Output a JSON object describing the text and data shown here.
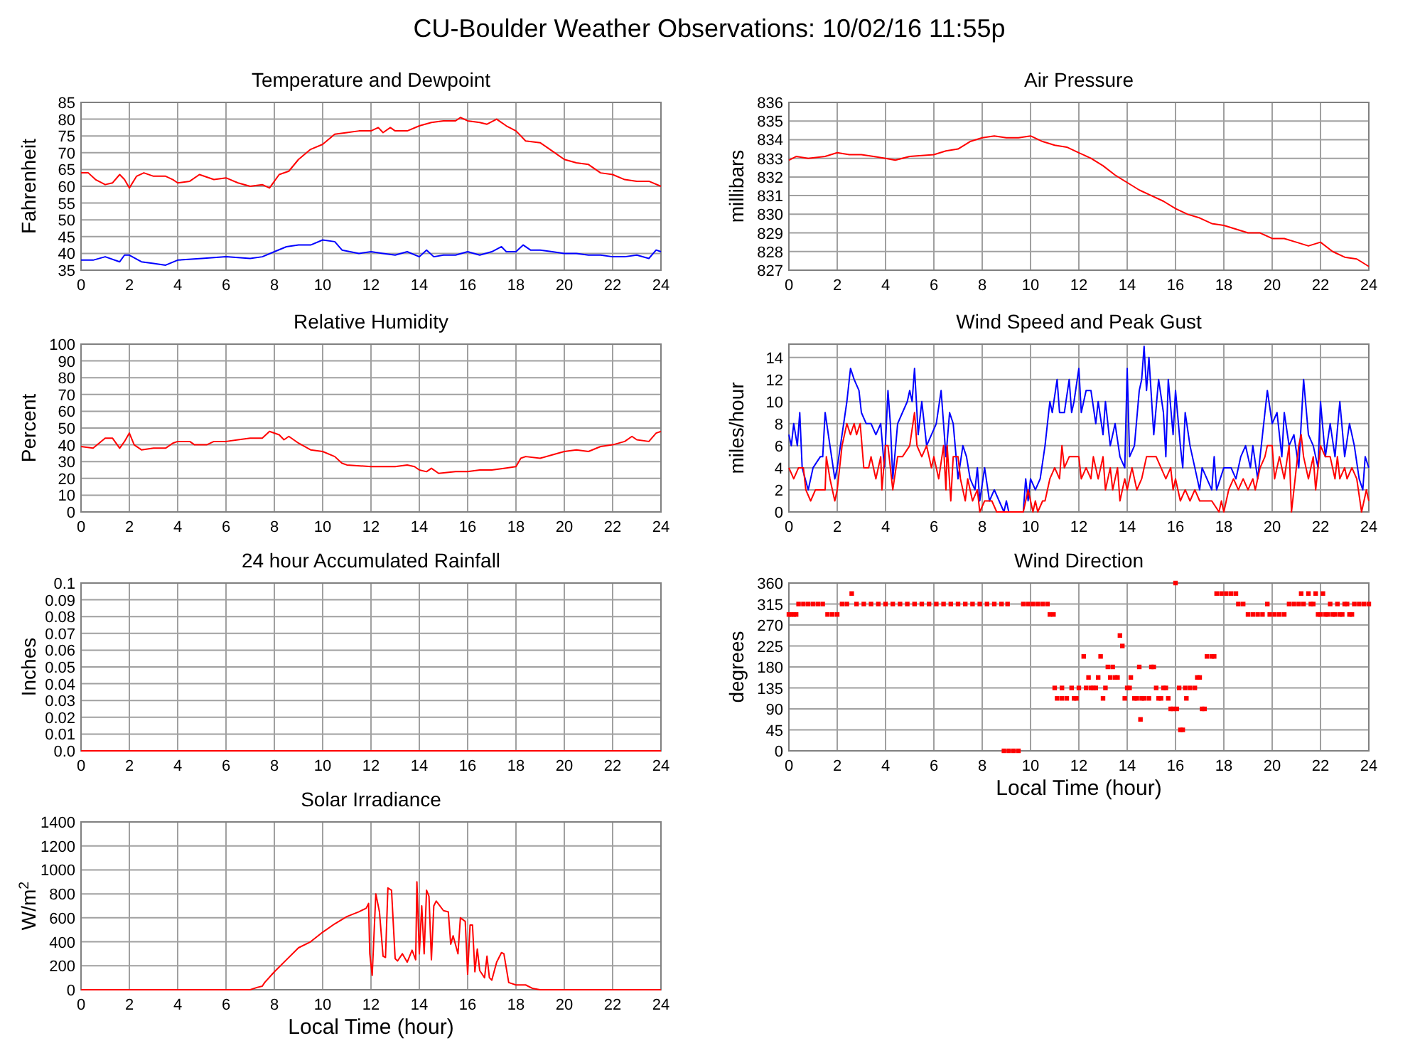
{
  "chart_data": [
    {
      "type": "line",
      "title": "Temperature and Dewpoint",
      "ylabel": "Fahrenheit",
      "annotations": [
        "CU-Boulder Weather Observations: 10/02/16 11:55p"
      ],
      "xlim": [
        0,
        24
      ],
      "xticks": [
        0,
        2,
        4,
        6,
        8,
        10,
        12,
        14,
        16,
        18,
        20,
        22,
        24
      ],
      "ylim": [
        35,
        85
      ],
      "yticks": [
        35,
        40,
        45,
        50,
        55,
        60,
        65,
        70,
        75,
        80,
        85
      ],
      "grid": true,
      "series": [
        {
          "color": "#ff0000",
          "x": [
            0,
            0.3,
            0.6,
            1,
            1.3,
            1.6,
            1.8,
            2,
            2.3,
            2.6,
            3,
            3.5,
            3.8,
            4,
            4.5,
            4.9,
            5.5,
            6,
            6.5,
            7,
            7.5,
            7.8,
            8.2,
            8.6,
            9,
            9.5,
            10,
            10.5,
            11,
            11.5,
            12,
            12.3,
            12.5,
            12.8,
            13,
            13.5,
            14,
            14.5,
            15,
            15.5,
            15.7,
            16,
            16.5,
            16.8,
            17.2,
            17.6,
            18,
            18.4,
            19,
            19.5,
            20,
            20.5,
            21,
            21.5,
            22,
            22.5,
            23,
            23.5,
            24
          ],
          "values": [
            64,
            64,
            62,
            60.5,
            61,
            63.5,
            62,
            59.5,
            63,
            64,
            63,
            63,
            62,
            61,
            61.5,
            63.5,
            62,
            62.5,
            61,
            60,
            60.5,
            59.5,
            63.5,
            64.5,
            68,
            71,
            72.5,
            75.5,
            76,
            76.5,
            76.5,
            77.5,
            76,
            77.5,
            76.5,
            76.5,
            78,
            79,
            79.5,
            79.5,
            80.5,
            79.5,
            79,
            78.5,
            80,
            78,
            76.5,
            73.5,
            73,
            70.5,
            68,
            67,
            66.5,
            64,
            63.5,
            62,
            61.5,
            61.5,
            60
          ]
        },
        {
          "color": "#0000ff",
          "x": [
            0,
            0.5,
            1,
            1.6,
            1.8,
            2,
            2.5,
            3,
            3.5,
            4,
            5,
            6,
            7,
            7.5,
            8,
            8.5,
            9,
            9.5,
            10,
            10.5,
            10.8,
            11.5,
            12,
            12.5,
            13,
            13.5,
            14,
            14.3,
            14.6,
            15,
            15.5,
            16,
            16.5,
            17,
            17.4,
            17.6,
            18,
            18.3,
            18.6,
            19,
            19.5,
            20,
            20.5,
            21,
            21.5,
            22,
            22.5,
            23,
            23.5,
            23.8,
            24
          ],
          "values": [
            38,
            38,
            39,
            37.5,
            39.5,
            39.5,
            37.5,
            37,
            36.5,
            38,
            38.5,
            39,
            38.5,
            39,
            40.5,
            42,
            42.5,
            42.5,
            44,
            43.5,
            41,
            40,
            40.5,
            40,
            39.5,
            40.5,
            39,
            41,
            39,
            39.5,
            39.5,
            40.5,
            39.5,
            40.5,
            42,
            40.5,
            40.5,
            42.5,
            41,
            41,
            40.5,
            40,
            40,
            39.5,
            39.5,
            39,
            39,
            39.5,
            38.5,
            41,
            40.5
          ]
        }
      ]
    },
    {
      "type": "line",
      "title": "Air Pressure",
      "ylabel": "millibars",
      "xlim": [
        0,
        24
      ],
      "xticks": [
        0,
        2,
        4,
        6,
        8,
        10,
        12,
        14,
        16,
        18,
        20,
        22,
        24
      ],
      "ylim": [
        827,
        836
      ],
      "yticks": [
        827,
        828,
        829,
        830,
        831,
        832,
        833,
        834,
        835,
        836
      ],
      "grid": true,
      "series": [
        {
          "color": "#ff0000",
          "x": [
            0,
            0.3,
            0.8,
            1.5,
            2,
            2.5,
            3,
            3.5,
            4,
            4.4,
            5,
            6,
            6.5,
            7,
            7.5,
            8,
            8.5,
            9,
            9.5,
            10,
            10.5,
            11,
            11.5,
            12,
            12.5,
            13,
            13.5,
            14,
            14.5,
            15,
            15.5,
            16,
            16.5,
            17,
            17.5,
            18,
            18.5,
            19,
            19.5,
            20,
            20.5,
            21,
            21.5,
            22,
            22.5,
            23,
            23.5,
            24
          ],
          "values": [
            832.9,
            833.1,
            833,
            833.1,
            833.3,
            833.2,
            833.2,
            833.1,
            833,
            832.9,
            833.1,
            833.2,
            833.4,
            833.5,
            833.9,
            834.1,
            834.2,
            834.1,
            834.1,
            834.2,
            833.9,
            833.7,
            833.6,
            833.3,
            833,
            832.6,
            832.1,
            831.7,
            831.3,
            831,
            830.7,
            830.3,
            830,
            829.8,
            829.5,
            829.4,
            829.2,
            829,
            829,
            828.7,
            828.7,
            828.5,
            828.3,
            828.5,
            828,
            827.7,
            827.6,
            827.2
          ]
        }
      ]
    },
    {
      "type": "line",
      "title": "Relative Humidity",
      "ylabel": "Percent",
      "xlim": [
        0,
        24
      ],
      "xticks": [
        0,
        2,
        4,
        6,
        8,
        10,
        12,
        14,
        16,
        18,
        20,
        22,
        24
      ],
      "ylim": [
        0,
        100
      ],
      "yticks": [
        0,
        10,
        20,
        30,
        40,
        50,
        60,
        70,
        80,
        90,
        100
      ],
      "grid": true,
      "series": [
        {
          "color": "#ff0000",
          "x": [
            0,
            0.5,
            1,
            1.3,
            1.6,
            1.8,
            2,
            2.2,
            2.5,
            3,
            3.5,
            3.8,
            4,
            4.5,
            4.7,
            5.2,
            5.5,
            6,
            6.5,
            7,
            7.5,
            7.8,
            8.2,
            8.4,
            8.6,
            9,
            9.5,
            10,
            10.5,
            10.8,
            11,
            12,
            13,
            13.5,
            13.8,
            14,
            14.3,
            14.5,
            14.8,
            15.5,
            16,
            16.5,
            17,
            17.5,
            18,
            18.2,
            18.4,
            19,
            19.5,
            20,
            20.5,
            21,
            21.5,
            22,
            22.5,
            22.8,
            23,
            23.5,
            23.8,
            24
          ],
          "values": [
            39,
            38,
            44,
            44,
            38,
            42,
            47,
            40,
            37,
            38,
            38,
            41,
            42,
            42,
            40,
            40,
            42,
            42,
            43,
            44,
            44,
            48,
            46,
            43,
            45,
            41,
            37,
            36,
            33,
            29,
            28,
            27,
            27,
            28,
            27,
            25,
            24,
            26,
            23,
            24,
            24,
            25,
            25,
            26,
            27,
            32,
            33,
            32,
            34,
            36,
            37,
            36,
            39,
            40,
            42,
            45,
            43,
            42,
            47,
            48
          ]
        }
      ]
    },
    {
      "type": "line",
      "title": "Wind Speed and Peak Gust",
      "ylabel": "miles/hour",
      "xlim": [
        0,
        24
      ],
      "xticks": [
        0,
        2,
        4,
        6,
        8,
        10,
        12,
        14,
        16,
        18,
        20,
        22,
        24
      ],
      "ylim": [
        0,
        15.2
      ],
      "yticks": [
        0,
        2,
        4,
        6,
        8,
        10,
        12,
        14
      ],
      "grid": true,
      "series": [
        {
          "color": "#0000ff",
          "x": [
            0,
            0.1,
            0.2,
            0.35,
            0.45,
            0.55,
            0.8,
            1,
            1.3,
            1.4,
            1.5,
            1.7,
            1.9,
            2,
            2.2,
            2.4,
            2.55,
            2.7,
            2.9,
            3,
            3.2,
            3.4,
            3.6,
            3.8,
            3.95,
            4.1,
            4.2,
            4.3,
            4.5,
            4.7,
            4.9,
            5,
            5.1,
            5.2,
            5.35,
            5.5,
            5.7,
            5.9,
            6.1,
            6.3,
            6.5,
            6.65,
            6.8,
            7,
            7.2,
            7.35,
            7.5,
            7.7,
            7.8,
            7.9,
            8.1,
            8.3,
            8.5,
            8.7,
            8.9,
            9,
            9.1,
            9.7,
            9.8,
            9.9,
            10,
            10.2,
            10.4,
            10.6,
            10.8,
            10.9,
            11.1,
            11.2,
            11.4,
            11.6,
            11.7,
            11.8,
            12,
            12.1,
            12.3,
            12.5,
            12.7,
            12.8,
            13,
            13.1,
            13.3,
            13.5,
            13.7,
            13.9,
            14,
            14.1,
            14.3,
            14.5,
            14.6,
            14.7,
            14.8,
            14.9,
            15.1,
            15.3,
            15.5,
            15.6,
            15.7,
            15.9,
            16,
            16.2,
            16.3,
            16.4,
            16.6,
            16.8,
            17,
            17.1,
            17.3,
            17.5,
            17.6,
            17.7,
            18,
            18.3,
            18.5,
            18.7,
            18.9,
            19.1,
            19.2,
            19.4,
            19.6,
            19.8,
            20,
            20.2,
            20.4,
            20.5,
            20.7,
            20.9,
            21.1,
            21.3,
            21.5,
            21.7,
            21.9,
            22,
            22.2,
            22.4,
            22.6,
            22.8,
            23,
            23.2,
            23.4,
            23.6,
            23.75,
            23.85,
            24
          ],
          "values": [
            7,
            6,
            8,
            6,
            9,
            4,
            2,
            4,
            5,
            5,
            9,
            6,
            3,
            4,
            7,
            10,
            13,
            12,
            11,
            9,
            8,
            8,
            7,
            8,
            4,
            11,
            8,
            3,
            8,
            9,
            10,
            11,
            10,
            13,
            7,
            10,
            6,
            7,
            8,
            11,
            5,
            9,
            8,
            3,
            6,
            5,
            3,
            2,
            4,
            1,
            4,
            1,
            2,
            1,
            0,
            1,
            0,
            0,
            3,
            1,
            3,
            2,
            3,
            6,
            10,
            9,
            12,
            9,
            9,
            12,
            9,
            10,
            13,
            9,
            11,
            11,
            8,
            10,
            7,
            10,
            6,
            8,
            5,
            4,
            13,
            5,
            6,
            11,
            12,
            15,
            11,
            14,
            7,
            12,
            9,
            5,
            12,
            7,
            11,
            6,
            4,
            9,
            6,
            4,
            2,
            4,
            3,
            2,
            5,
            2,
            4,
            4,
            3,
            5,
            6,
            4,
            6,
            3,
            7,
            11,
            8,
            9,
            5,
            9,
            6,
            7,
            4,
            12,
            7,
            6,
            4,
            10,
            5,
            8,
            5,
            10,
            5,
            8,
            6,
            3,
            2,
            5,
            4
          ]
        },
        {
          "color": "#ff0000",
          "x": [
            0,
            0.2,
            0.4,
            0.6,
            0.7,
            0.9,
            1.1,
            1.3,
            1.5,
            1.55,
            1.7,
            1.9,
            2,
            2.2,
            2.4,
            2.55,
            2.7,
            2.8,
            2.95,
            3.1,
            3.3,
            3.4,
            3.6,
            3.8,
            3.85,
            4,
            4.1,
            4.3,
            4.5,
            4.7,
            5,
            5.2,
            5.3,
            5.5,
            5.7,
            5.9,
            6,
            6.2,
            6.4,
            6.5,
            6.55,
            6.7,
            6.8,
            7,
            7.1,
            7.3,
            7.4,
            7.6,
            7.8,
            7.9,
            8.1,
            8.4,
            8.6,
            9,
            9.7,
            9.9,
            10.1,
            10.2,
            10.3,
            10.5,
            10.6,
            10.8,
            11,
            11.2,
            11.3,
            11.4,
            11.6,
            11.8,
            12,
            12.1,
            12.3,
            12.5,
            12.6,
            12.8,
            13,
            13.1,
            13.3,
            13.4,
            13.6,
            13.7,
            13.8,
            13.9,
            14,
            14.2,
            14.4,
            14.6,
            14.8,
            15,
            15.2,
            15.4,
            15.6,
            15.8,
            15.9,
            16,
            16.2,
            16.4,
            16.6,
            16.8,
            17,
            17.5,
            17.8,
            17.9,
            18,
            18.2,
            18.4,
            18.6,
            18.8,
            19,
            19.2,
            19.3,
            19.5,
            19.7,
            19.8,
            20,
            20.1,
            20.3,
            20.5,
            20.7,
            20.8,
            21,
            21.1,
            21.2,
            21.3,
            21.5,
            21.6,
            21.7,
            21.8,
            22,
            22.2,
            22.4,
            22.6,
            22.7,
            22.8,
            23,
            23.1,
            23.3,
            23.5,
            23.7,
            23.9,
            24
          ],
          "values": [
            4,
            3,
            4,
            4,
            2,
            1,
            2,
            2,
            2,
            5,
            3,
            1,
            2,
            6,
            8,
            7,
            8,
            7,
            8,
            4,
            4,
            5,
            3,
            5,
            2,
            6,
            6,
            2,
            5,
            5,
            6,
            9,
            6,
            5,
            6,
            4,
            5,
            3,
            6,
            2,
            6,
            1,
            5,
            5,
            3,
            1,
            3,
            1,
            2,
            0,
            1,
            1,
            0,
            0,
            0,
            2,
            0,
            1,
            0,
            1,
            1,
            3,
            4,
            3,
            6,
            4,
            5,
            5,
            5,
            3,
            4,
            3,
            5,
            3,
            5,
            2,
            4,
            2,
            4,
            1,
            2,
            3,
            2,
            4,
            2,
            3,
            5,
            5,
            5,
            4,
            3,
            4,
            2,
            3,
            1,
            2,
            1,
            2,
            1,
            1,
            0,
            1,
            0,
            2,
            3,
            2,
            3,
            2,
            3,
            2,
            4,
            5,
            6,
            6,
            3,
            5,
            3,
            6,
            0,
            4,
            6,
            7,
            5,
            3,
            4,
            5,
            2,
            6,
            5,
            5,
            3,
            5,
            3,
            4,
            3,
            4,
            3,
            0,
            2,
            1
          ]
        }
      ]
    },
    {
      "type": "line",
      "title": "24 hour Accumulated Rainfall",
      "ylabel": "Inches",
      "xlim": [
        0,
        24
      ],
      "xticks": [
        0,
        2,
        4,
        6,
        8,
        10,
        12,
        14,
        16,
        18,
        20,
        22,
        24
      ],
      "ylim": [
        0,
        0.1
      ],
      "yticks": [
        {
          "value": 0,
          "label": "0.0"
        },
        0.01,
        0.02,
        0.03,
        0.04,
        0.05,
        0.06,
        0.07,
        0.08,
        0.09,
        0.1
      ],
      "grid": true,
      "series": [
        {
          "color": "#ff0000",
          "x": [
            0,
            24
          ],
          "values": [
            0,
            0
          ]
        }
      ]
    },
    {
      "type": "scatter",
      "title": "Wind Direction",
      "ylabel": "degrees",
      "xlabel": "Local Time (hour)",
      "marker": "square",
      "xlim": [
        0,
        24
      ],
      "xticks": [
        0,
        2,
        4,
        6,
        8,
        10,
        12,
        14,
        16,
        18,
        20,
        22,
        24
      ],
      "ylim": [
        0,
        360
      ],
      "yticks": [
        0,
        45,
        90,
        135,
        180,
        225,
        270,
        315,
        360
      ],
      "grid": true,
      "series": [
        {
          "color": "#ff0000",
          "x": [
            0,
            0.1,
            0.2,
            0.3,
            0.4,
            0.6,
            0.8,
            1,
            1.2,
            1.4,
            1.6,
            1.8,
            2,
            2.2,
            2.4,
            2.6,
            2.8,
            3.1,
            3.4,
            3.7,
            4,
            4.3,
            4.6,
            4.9,
            5.2,
            5.5,
            5.8,
            6.1,
            6.4,
            6.7,
            7,
            7.3,
            7.6,
            7.9,
            8.2,
            8.5,
            8.8,
            8.9,
            9.05,
            9.1,
            9.3,
            9.5,
            9.7,
            9.9,
            10.1,
            10.3,
            10.5,
            10.7,
            10.8,
            10.95,
            11,
            11.1,
            11.3,
            11.3,
            11.5,
            11.7,
            11.8,
            11.9,
            12,
            12.2,
            12.3,
            12.4,
            12.5,
            12.6,
            12.7,
            12.8,
            12.9,
            13,
            13.1,
            13.2,
            13.3,
            13.4,
            13.5,
            13.6,
            13.7,
            13.8,
            13.9,
            14,
            14.1,
            14.15,
            14.3,
            14.4,
            14.5,
            14.55,
            14.6,
            14.7,
            14.9,
            15,
            15.1,
            15.2,
            15.3,
            15.4,
            15.5,
            15.6,
            15.7,
            15.8,
            15.9,
            16,
            16.05,
            16.15,
            16.2,
            16.3,
            16.4,
            16.45,
            16.6,
            16.8,
            16.9,
            17,
            17.1,
            17.2,
            17.3,
            17.5,
            17.6,
            17.7,
            17.9,
            18.1,
            18.3,
            18.5,
            18.6,
            18.8,
            19,
            19.2,
            19.4,
            19.6,
            19.8,
            19.9,
            20.1,
            20.3,
            20.5,
            20.7,
            20.9,
            21.1,
            21.2,
            21.3,
            21.5,
            21.6,
            21.7,
            21.8,
            21.9,
            22,
            22.1,
            22.2,
            22.3,
            22.4,
            22.5,
            22.6,
            22.7,
            22.8,
            22.9,
            23,
            23.1,
            23.2,
            23.3,
            23.4,
            23.6,
            23.8,
            24
          ],
          "values": [
            292.5,
            292.5,
            292.5,
            292.5,
            315,
            315,
            315,
            315,
            315,
            315,
            292.5,
            292.5,
            292.5,
            315,
            315,
            337.5,
            315,
            315,
            315,
            315,
            315,
            315,
            315,
            315,
            315,
            315,
            315,
            315,
            315,
            315,
            315,
            315,
            315,
            315,
            315,
            315,
            315,
            0,
            315,
            0,
            0,
            0,
            315,
            315,
            315,
            315,
            315,
            315,
            292.5,
            292.5,
            135,
            112.5,
            112.5,
            135,
            112.5,
            135,
            112.5,
            112.5,
            135,
            202.5,
            135,
            157.5,
            135,
            135,
            135,
            157.5,
            202.5,
            112.5,
            135,
            180,
            157.5,
            180,
            157.5,
            157.5,
            247.5,
            225,
            112.5,
            135,
            135,
            157.5,
            112.5,
            112.5,
            180,
            67.5,
            112.5,
            112.5,
            112.5,
            180,
            180,
            135,
            112.5,
            112.5,
            135,
            135,
            112.5,
            90,
            90,
            360,
            90,
            135,
            45,
            45,
            135,
            112.5,
            135,
            135,
            157.5,
            157.5,
            90,
            90,
            202.5,
            202.5,
            202.5,
            337.5,
            337.5,
            337.5,
            337.5,
            337.5,
            315,
            315,
            292.5,
            292.5,
            292.5,
            292.5,
            315,
            292.5,
            292.5,
            292.5,
            292.5,
            315,
            315,
            315,
            337.5,
            315,
            337.5,
            315,
            315,
            337.5,
            292.5,
            292.5,
            337.5,
            292.5,
            292.5,
            315,
            292.5,
            292.5,
            315,
            292.5,
            292.5,
            315,
            315,
            292.5,
            292.5,
            315,
            315,
            315,
            315
          ]
        }
      ]
    },
    {
      "type": "line",
      "title": "Solar Irradiance",
      "ylabel": "W/m$^{2}$",
      "xlabel": "Local Time (hour)",
      "xlim": [
        0,
        24
      ],
      "xticks": [
        0,
        2,
        4,
        6,
        8,
        10,
        12,
        14,
        16,
        18,
        20,
        22,
        24
      ],
      "ylim": [
        0,
        1400
      ],
      "yticks": [
        0,
        200,
        400,
        600,
        800,
        1000,
        1200,
        1400
      ],
      "grid": true,
      "series": [
        {
          "color": "#ff0000",
          "x": [
            0,
            7,
            7.3,
            7.5,
            7.6,
            8,
            8.5,
            9,
            9.5,
            10,
            10.5,
            11,
            11.5,
            11.8,
            11.9,
            11.95,
            12.05,
            12.2,
            12.35,
            12.5,
            12.6,
            12.7,
            12.85,
            13,
            13.1,
            13.3,
            13.5,
            13.7,
            13.85,
            13.9,
            14,
            14.1,
            14.2,
            14.3,
            14.4,
            14.5,
            14.6,
            14.7,
            15,
            15.2,
            15.3,
            15.4,
            15.6,
            15.7,
            15.9,
            16,
            16.1,
            16.2,
            16.3,
            16.4,
            16.5,
            16.7,
            16.8,
            16.9,
            17,
            17.2,
            17.4,
            17.5,
            17.7,
            18,
            18.4,
            18.7,
            19,
            24
          ],
          "values": [
            0,
            0,
            20,
            30,
            60,
            150,
            250,
            350,
            400,
            480,
            550,
            610,
            650,
            680,
            720,
            300,
            120,
            800,
            650,
            280,
            270,
            850,
            830,
            260,
            240,
            300,
            230,
            330,
            250,
            900,
            300,
            700,
            300,
            830,
            780,
            250,
            700,
            740,
            660,
            650,
            380,
            450,
            300,
            600,
            570,
            130,
            540,
            540,
            150,
            340,
            160,
            100,
            280,
            100,
            80,
            230,
            310,
            300,
            60,
            40,
            40,
            10,
            0,
            0
          ]
        }
      ]
    }
  ]
}
